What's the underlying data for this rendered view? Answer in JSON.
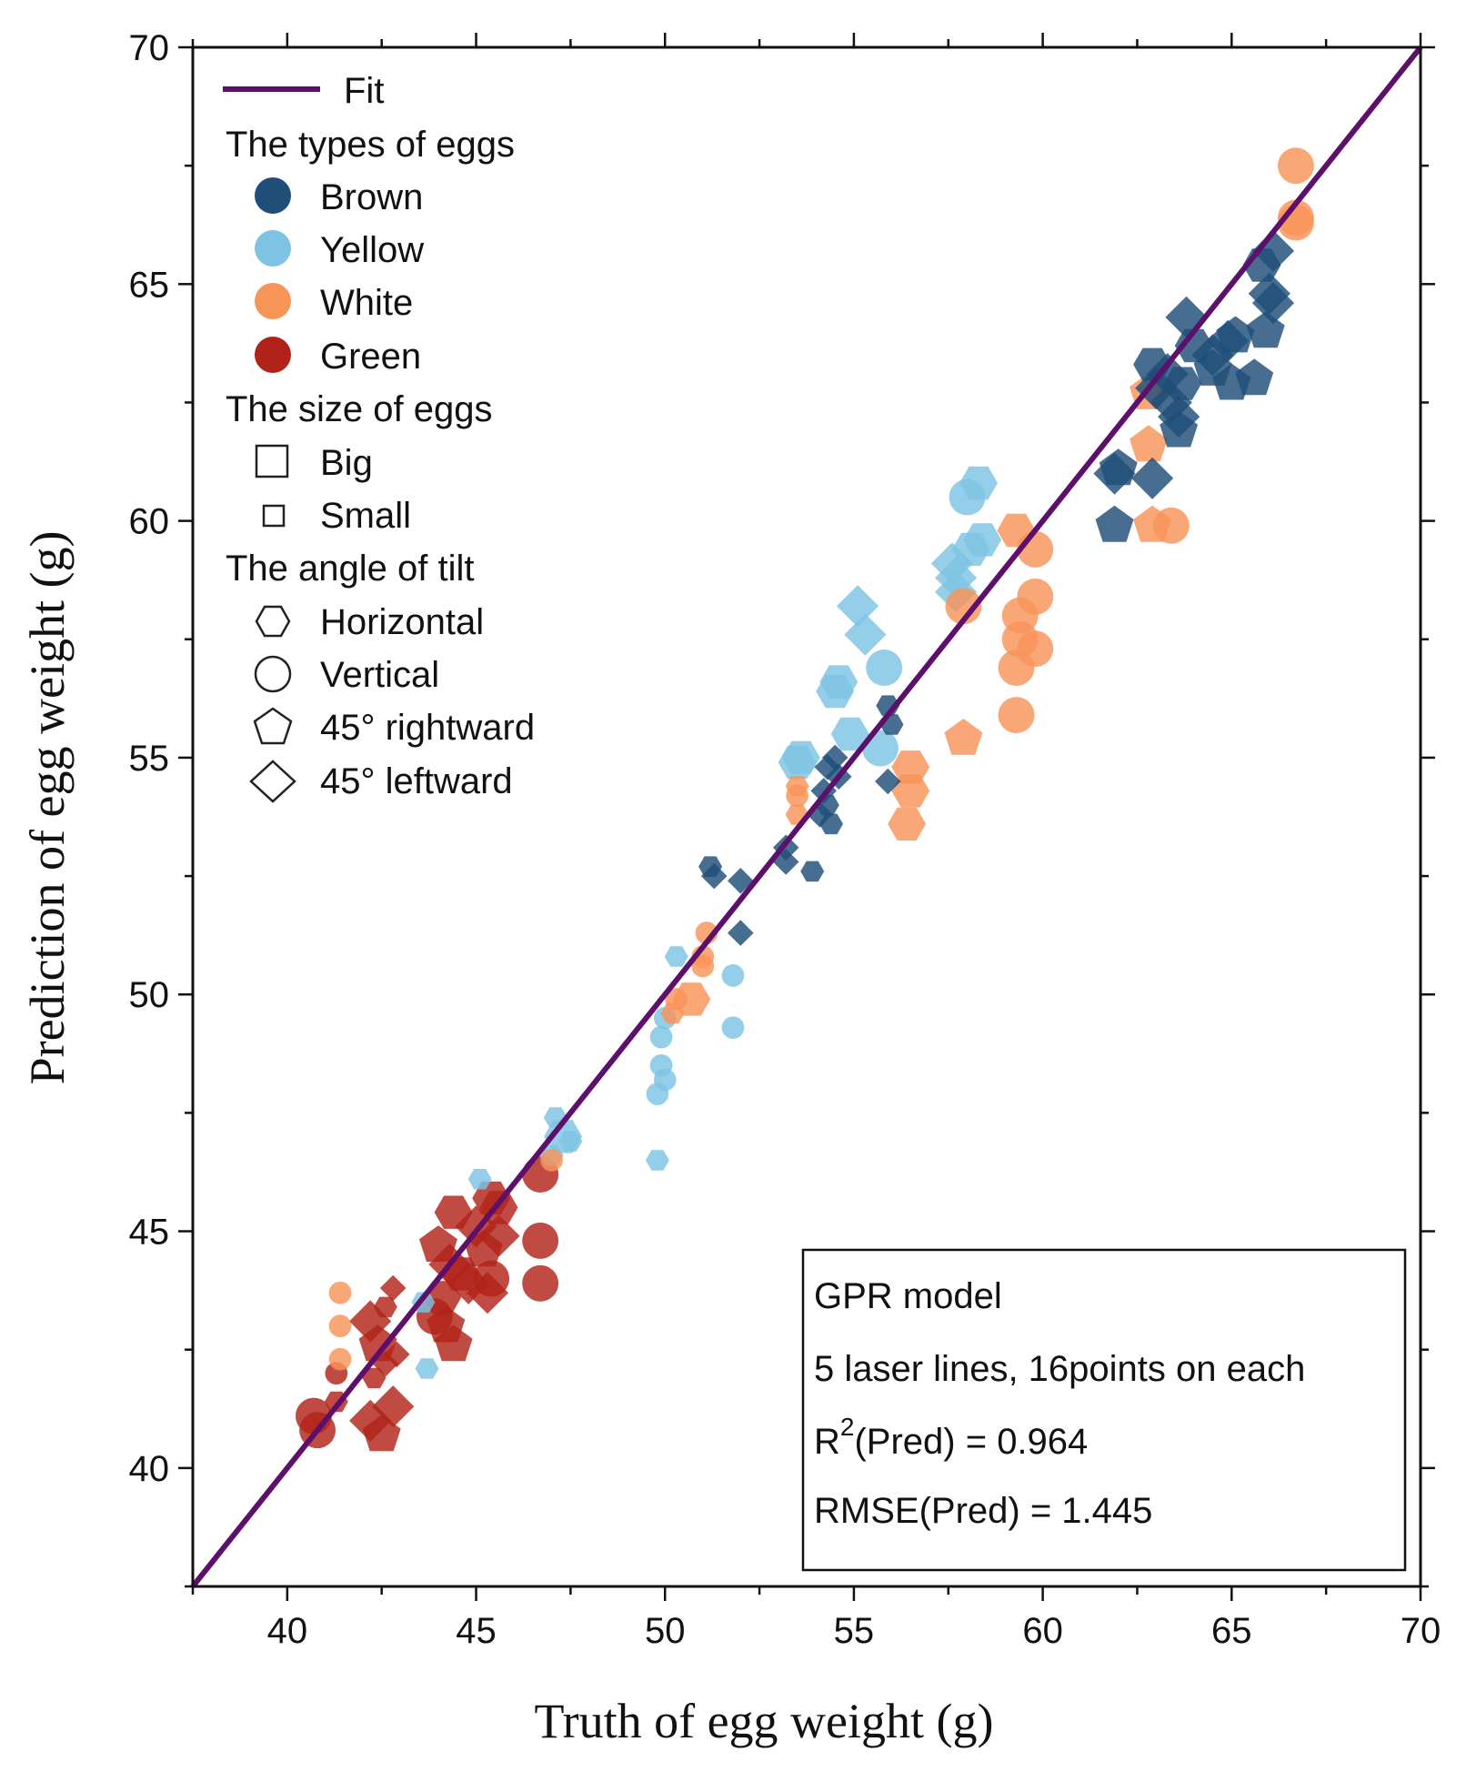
{
  "chart_data": {
    "type": "scatter",
    "xlabel": "Truth of egg weight (g)",
    "ylabel": "Prediction of egg weight (g)",
    "xlim": [
      37.5,
      70
    ],
    "ylim": [
      37.5,
      70
    ],
    "x_ticks": [
      "40",
      "45",
      "50",
      "55",
      "60",
      "65",
      "70"
    ],
    "y_ticks": [
      "40",
      "45",
      "50",
      "55",
      "60",
      "65",
      "70"
    ],
    "colors": {
      "Brown": "#1f4e79",
      "Yellow": "#7ec3e3",
      "White": "#f99459",
      "Green": "#b12318",
      "Fit": "#5c0f6b"
    },
    "fit_line": {
      "label": "Fit",
      "x": [
        37.5,
        70
      ],
      "y": [
        37.5,
        70
      ]
    },
    "legend": {
      "fit_label": "Fit",
      "types_title": "The types of eggs",
      "types": [
        "Brown",
        "Yellow",
        "White",
        "Green"
      ],
      "size_title": "The size of eggs",
      "sizes": [
        "Big",
        "Small"
      ],
      "tilt_title": "The angle of tilt",
      "tilts": [
        "Horizontal",
        "Vertical",
        "45° rightward",
        "45° leftward"
      ]
    },
    "stats_box": {
      "line1": "GPR model",
      "line2": "5 laser lines, 16points on each",
      "r2_prefix": "R",
      "r2_sup": "2",
      "r2_rest": "(Pred) = 0.964",
      "rmse": "RMSE(Pred) = 1.445"
    },
    "series": [
      {
        "name": "Green",
        "points": [
          [
            40.7,
            41.1,
            "c",
            "b"
          ],
          [
            40.8,
            40.8,
            "c",
            "b"
          ],
          [
            41.3,
            41.4,
            "h",
            "s"
          ],
          [
            41.3,
            42.0,
            "c",
            "s"
          ],
          [
            42.2,
            41.0,
            "d",
            "b"
          ],
          [
            42.5,
            40.7,
            "p",
            "b"
          ],
          [
            42.8,
            41.3,
            "d",
            "b"
          ],
          [
            42.3,
            41.9,
            "h",
            "s"
          ],
          [
            42.6,
            42.2,
            "d",
            "s"
          ],
          [
            42.4,
            42.6,
            "p",
            "b"
          ],
          [
            42.9,
            42.4,
            "d",
            "s"
          ],
          [
            42.2,
            43.1,
            "d",
            "b"
          ],
          [
            42.6,
            43.4,
            "h",
            "s"
          ],
          [
            42.8,
            43.8,
            "d",
            "s"
          ],
          [
            43.9,
            43.2,
            "c",
            "b"
          ],
          [
            44.1,
            43.6,
            "h",
            "b"
          ],
          [
            44.2,
            43.0,
            "p",
            "b"
          ],
          [
            44.4,
            42.6,
            "p",
            "b"
          ],
          [
            44.3,
            44.3,
            "d",
            "b"
          ],
          [
            44.0,
            44.7,
            "p",
            "b"
          ],
          [
            44.6,
            44.1,
            "h",
            "b"
          ],
          [
            44.4,
            45.4,
            "h",
            "b"
          ],
          [
            45.0,
            45.1,
            "d",
            "b"
          ],
          [
            45.2,
            44.6,
            "p",
            "b"
          ],
          [
            45.4,
            44.0,
            "c",
            "b"
          ],
          [
            45.3,
            43.7,
            "d",
            "b"
          ],
          [
            45.6,
            45.5,
            "h",
            "b"
          ],
          [
            45.6,
            44.9,
            "d",
            "b"
          ],
          [
            45.4,
            45.7,
            "h",
            "b"
          ],
          [
            44.8,
            43.9,
            "d",
            "b"
          ],
          [
            46.7,
            46.2,
            "c",
            "b"
          ],
          [
            46.7,
            44.8,
            "c",
            "b"
          ],
          [
            46.7,
            43.9,
            "c",
            "b"
          ]
        ]
      },
      {
        "name": "Yellow",
        "points": [
          [
            43.7,
            42.1,
            "h",
            "s"
          ],
          [
            43.6,
            43.5,
            "h",
            "s"
          ],
          [
            45.1,
            46.1,
            "h",
            "s"
          ],
          [
            47.0,
            46.6,
            "h",
            "s"
          ],
          [
            47.3,
            47.0,
            "h",
            "b"
          ],
          [
            47.5,
            46.9,
            "h",
            "s"
          ],
          [
            47.1,
            47.4,
            "h",
            "s"
          ],
          [
            49.8,
            46.5,
            "h",
            "s"
          ],
          [
            49.8,
            47.9,
            "c",
            "s"
          ],
          [
            49.9,
            48.5,
            "c",
            "s"
          ],
          [
            49.9,
            49.1,
            "c",
            "s"
          ],
          [
            50.0,
            48.2,
            "c",
            "s"
          ],
          [
            50.0,
            49.5,
            "c",
            "s"
          ],
          [
            50.3,
            50.8,
            "h",
            "s"
          ],
          [
            51.8,
            49.3,
            "c",
            "s"
          ],
          [
            51.8,
            50.4,
            "c",
            "s"
          ],
          [
            53.5,
            54.9,
            "h",
            "b"
          ],
          [
            53.6,
            55.0,
            "h",
            "b"
          ],
          [
            54.5,
            56.4,
            "h",
            "b"
          ],
          [
            54.6,
            56.6,
            "h",
            "b"
          ],
          [
            54.9,
            55.5,
            "h",
            "b"
          ],
          [
            55.1,
            58.2,
            "d",
            "b"
          ],
          [
            55.3,
            57.6,
            "d",
            "b"
          ],
          [
            55.8,
            56.9,
            "c",
            "b"
          ],
          [
            55.7,
            55.2,
            "c",
            "b"
          ],
          [
            57.6,
            59.1,
            "d",
            "b"
          ],
          [
            57.7,
            58.8,
            "d",
            "b"
          ],
          [
            58.1,
            59.4,
            "h",
            "b"
          ],
          [
            58.0,
            60.5,
            "c",
            "b"
          ],
          [
            58.3,
            60.8,
            "h",
            "b"
          ],
          [
            58.4,
            59.6,
            "h",
            "b"
          ],
          [
            57.7,
            58.5,
            "d",
            "b"
          ]
        ]
      },
      {
        "name": "White",
        "points": [
          [
            41.4,
            43.7,
            "c",
            "s"
          ],
          [
            41.4,
            43.0,
            "c",
            "s"
          ],
          [
            41.4,
            42.3,
            "c",
            "s"
          ],
          [
            47.0,
            46.5,
            "c",
            "s"
          ],
          [
            50.2,
            49.6,
            "h",
            "s"
          ],
          [
            50.3,
            49.9,
            "c",
            "s"
          ],
          [
            50.7,
            49.9,
            "h",
            "b"
          ],
          [
            51.0,
            50.6,
            "c",
            "s"
          ],
          [
            51.0,
            50.8,
            "c",
            "s"
          ],
          [
            51.1,
            51.3,
            "c",
            "s"
          ],
          [
            53.5,
            53.8,
            "h",
            "s"
          ],
          [
            53.5,
            54.2,
            "c",
            "s"
          ],
          [
            53.5,
            54.4,
            "h",
            "s"
          ],
          [
            56.4,
            53.6,
            "h",
            "b"
          ],
          [
            56.5,
            54.3,
            "h",
            "b"
          ],
          [
            56.5,
            54.8,
            "h",
            "b"
          ],
          [
            57.9,
            55.4,
            "p",
            "b"
          ],
          [
            57.9,
            58.2,
            "c",
            "b"
          ],
          [
            59.3,
            55.9,
            "c",
            "b"
          ],
          [
            59.3,
            56.9,
            "c",
            "b"
          ],
          [
            59.4,
            57.5,
            "c",
            "b"
          ],
          [
            59.4,
            58.0,
            "c",
            "b"
          ],
          [
            59.3,
            59.8,
            "h",
            "b"
          ],
          [
            59.8,
            57.3,
            "c",
            "b"
          ],
          [
            59.8,
            58.4,
            "c",
            "b"
          ],
          [
            59.8,
            59.4,
            "c",
            "b"
          ],
          [
            62.9,
            59.9,
            "p",
            "b"
          ],
          [
            63.4,
            59.9,
            "c",
            "b"
          ],
          [
            62.8,
            61.6,
            "p",
            "b"
          ],
          [
            62.8,
            62.7,
            "p",
            "b"
          ],
          [
            66.7,
            67.5,
            "c",
            "b"
          ],
          [
            66.7,
            66.4,
            "c",
            "b"
          ],
          [
            66.7,
            66.3,
            "c",
            "b"
          ]
        ]
      },
      {
        "name": "Brown",
        "points": [
          [
            51.2,
            52.7,
            "h",
            "s"
          ],
          [
            51.3,
            52.5,
            "d",
            "s"
          ],
          [
            52.0,
            52.4,
            "d",
            "s"
          ],
          [
            52.0,
            51.3,
            "d",
            "s"
          ],
          [
            53.2,
            53.1,
            "d",
            "s"
          ],
          [
            53.2,
            52.8,
            "d",
            "s"
          ],
          [
            53.9,
            52.6,
            "h",
            "s"
          ],
          [
            54.1,
            53.8,
            "d",
            "s"
          ],
          [
            54.2,
            54.3,
            "d",
            "s"
          ],
          [
            54.3,
            54.8,
            "d",
            "s"
          ],
          [
            54.4,
            53.6,
            "h",
            "s"
          ],
          [
            54.5,
            55.0,
            "d",
            "s"
          ],
          [
            54.6,
            54.6,
            "d",
            "s"
          ],
          [
            54.3,
            54.0,
            "h",
            "s"
          ],
          [
            55.9,
            56.1,
            "h",
            "s"
          ],
          [
            56.0,
            55.7,
            "h",
            "s"
          ],
          [
            55.9,
            54.5,
            "d",
            "s"
          ],
          [
            61.9,
            59.9,
            "p",
            "b"
          ],
          [
            61.9,
            61.0,
            "d",
            "b"
          ],
          [
            62.0,
            61.1,
            "p",
            "b"
          ],
          [
            62.9,
            60.9,
            "d",
            "b"
          ],
          [
            63.0,
            62.8,
            "d",
            "b"
          ],
          [
            62.9,
            63.3,
            "h",
            "b"
          ],
          [
            63.3,
            63.1,
            "d",
            "b"
          ],
          [
            63.4,
            62.5,
            "d",
            "b"
          ],
          [
            63.6,
            62.2,
            "d",
            "b"
          ],
          [
            63.6,
            61.9,
            "p",
            "b"
          ],
          [
            63.7,
            62.9,
            "h",
            "b"
          ],
          [
            63.8,
            64.3,
            "d",
            "b"
          ],
          [
            64.0,
            63.7,
            "h",
            "b"
          ],
          [
            64.5,
            63.5,
            "d",
            "b"
          ],
          [
            64.5,
            63.2,
            "p",
            "b"
          ],
          [
            64.9,
            63.8,
            "d",
            "b"
          ],
          [
            65.0,
            62.9,
            "p",
            "b"
          ],
          [
            65.1,
            63.9,
            "p",
            "b"
          ],
          [
            65.6,
            63.0,
            "p",
            "b"
          ],
          [
            65.8,
            65.4,
            "h",
            "b"
          ],
          [
            65.9,
            64.0,
            "p",
            "b"
          ],
          [
            66.0,
            64.8,
            "d",
            "b"
          ],
          [
            66.1,
            64.6,
            "d",
            "b"
          ],
          [
            66.1,
            65.7,
            "d",
            "b"
          ]
        ]
      }
    ]
  }
}
